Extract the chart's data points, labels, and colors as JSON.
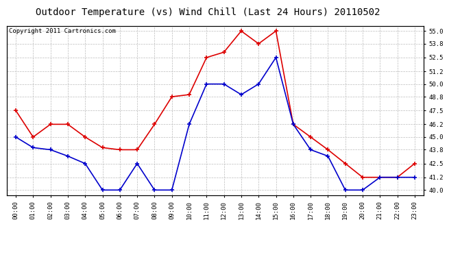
{
  "title": "Outdoor Temperature (vs) Wind Chill (Last 24 Hours) 20110502",
  "copyright": "Copyright 2011 Cartronics.com",
  "x_labels": [
    "00:00",
    "01:00",
    "02:00",
    "03:00",
    "04:00",
    "05:00",
    "06:00",
    "07:00",
    "08:00",
    "09:00",
    "10:00",
    "11:00",
    "12:00",
    "13:00",
    "14:00",
    "15:00",
    "16:00",
    "17:00",
    "18:00",
    "19:00",
    "20:00",
    "21:00",
    "22:00",
    "23:00"
  ],
  "temp_red": [
    47.5,
    45.0,
    46.2,
    46.2,
    45.0,
    44.0,
    43.8,
    43.8,
    46.2,
    48.8,
    49.0,
    52.5,
    53.0,
    55.0,
    53.8,
    55.0,
    46.2,
    45.0,
    43.8,
    42.5,
    41.2,
    41.2,
    41.2,
    42.5
  ],
  "wind_blue": [
    45.0,
    44.0,
    43.8,
    43.2,
    42.5,
    40.0,
    40.0,
    42.5,
    40.0,
    40.0,
    46.2,
    50.0,
    50.0,
    49.0,
    50.0,
    52.5,
    46.2,
    43.8,
    43.2,
    40.0,
    40.0,
    41.2,
    41.2,
    41.2
  ],
  "ylim": [
    39.5,
    55.5
  ],
  "yticks": [
    40.0,
    41.2,
    42.5,
    43.8,
    45.0,
    46.2,
    47.5,
    48.8,
    50.0,
    51.2,
    52.5,
    53.8,
    55.0
  ],
  "red_color": "#dd0000",
  "blue_color": "#0000cc",
  "grid_color": "#bbbbbb",
  "bg_color": "#ffffff",
  "title_fontsize": 10,
  "copyright_fontsize": 6.5
}
